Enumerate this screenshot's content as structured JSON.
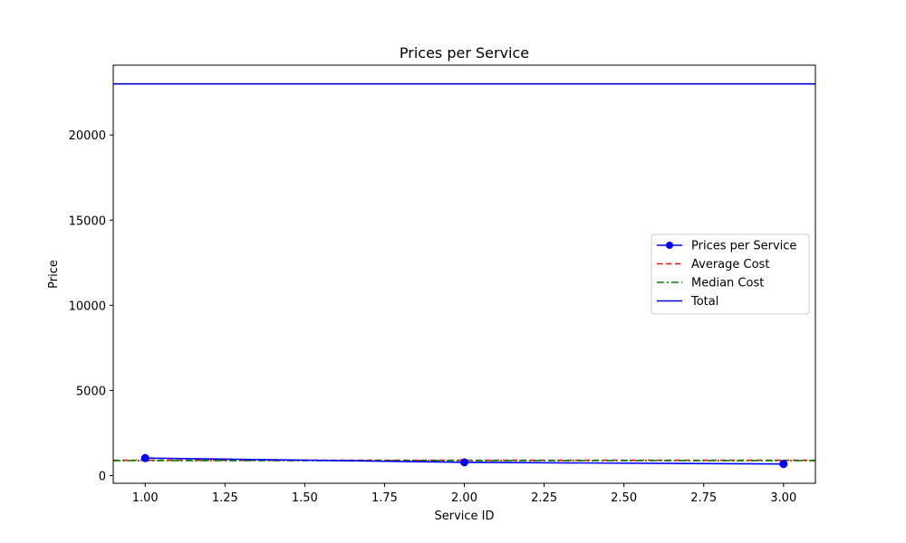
{
  "chart_data": {
    "type": "line",
    "title": "Prices per Service",
    "xlabel": "Service ID",
    "ylabel": "Price",
    "xlim": [
      0.9,
      3.1
    ],
    "ylim": [
      -450,
      24100
    ],
    "xticks": [
      1.0,
      1.25,
      1.5,
      1.75,
      2.0,
      2.25,
      2.5,
      2.75,
      3.0
    ],
    "xtick_labels": [
      "1.00",
      "1.25",
      "1.50",
      "1.75",
      "2.00",
      "2.25",
      "2.50",
      "2.75",
      "3.00"
    ],
    "yticks": [
      0,
      5000,
      10000,
      15000,
      20000
    ],
    "ytick_labels": [
      "0",
      "5000",
      "10000",
      "15000",
      "20000"
    ],
    "grid": false,
    "legend_position": "center-right",
    "series": [
      {
        "name": "Prices per Service",
        "style": "solid-marker",
        "color": "#0000ff",
        "x": [
          1,
          2,
          3
        ],
        "y": [
          1030,
          780,
          680
        ]
      }
    ],
    "reference_lines": [
      {
        "name": "Average Cost",
        "style": "dashed",
        "color": "#ff0000",
        "y": 900
      },
      {
        "name": "Median Cost",
        "style": "dashdot",
        "color": "#008000",
        "y": 880
      },
      {
        "name": "Total",
        "style": "solid",
        "color": "#0000cd",
        "y": 23000
      }
    ],
    "legend": [
      {
        "label": "Prices per Service",
        "style": "solid-marker",
        "color": "#0000ff"
      },
      {
        "label": "Average Cost",
        "style": "dashed",
        "color": "#ff0000"
      },
      {
        "label": "Median Cost",
        "style": "dashdot",
        "color": "#008000"
      },
      {
        "label": "Total",
        "style": "solid",
        "color": "#0000cd"
      }
    ]
  }
}
